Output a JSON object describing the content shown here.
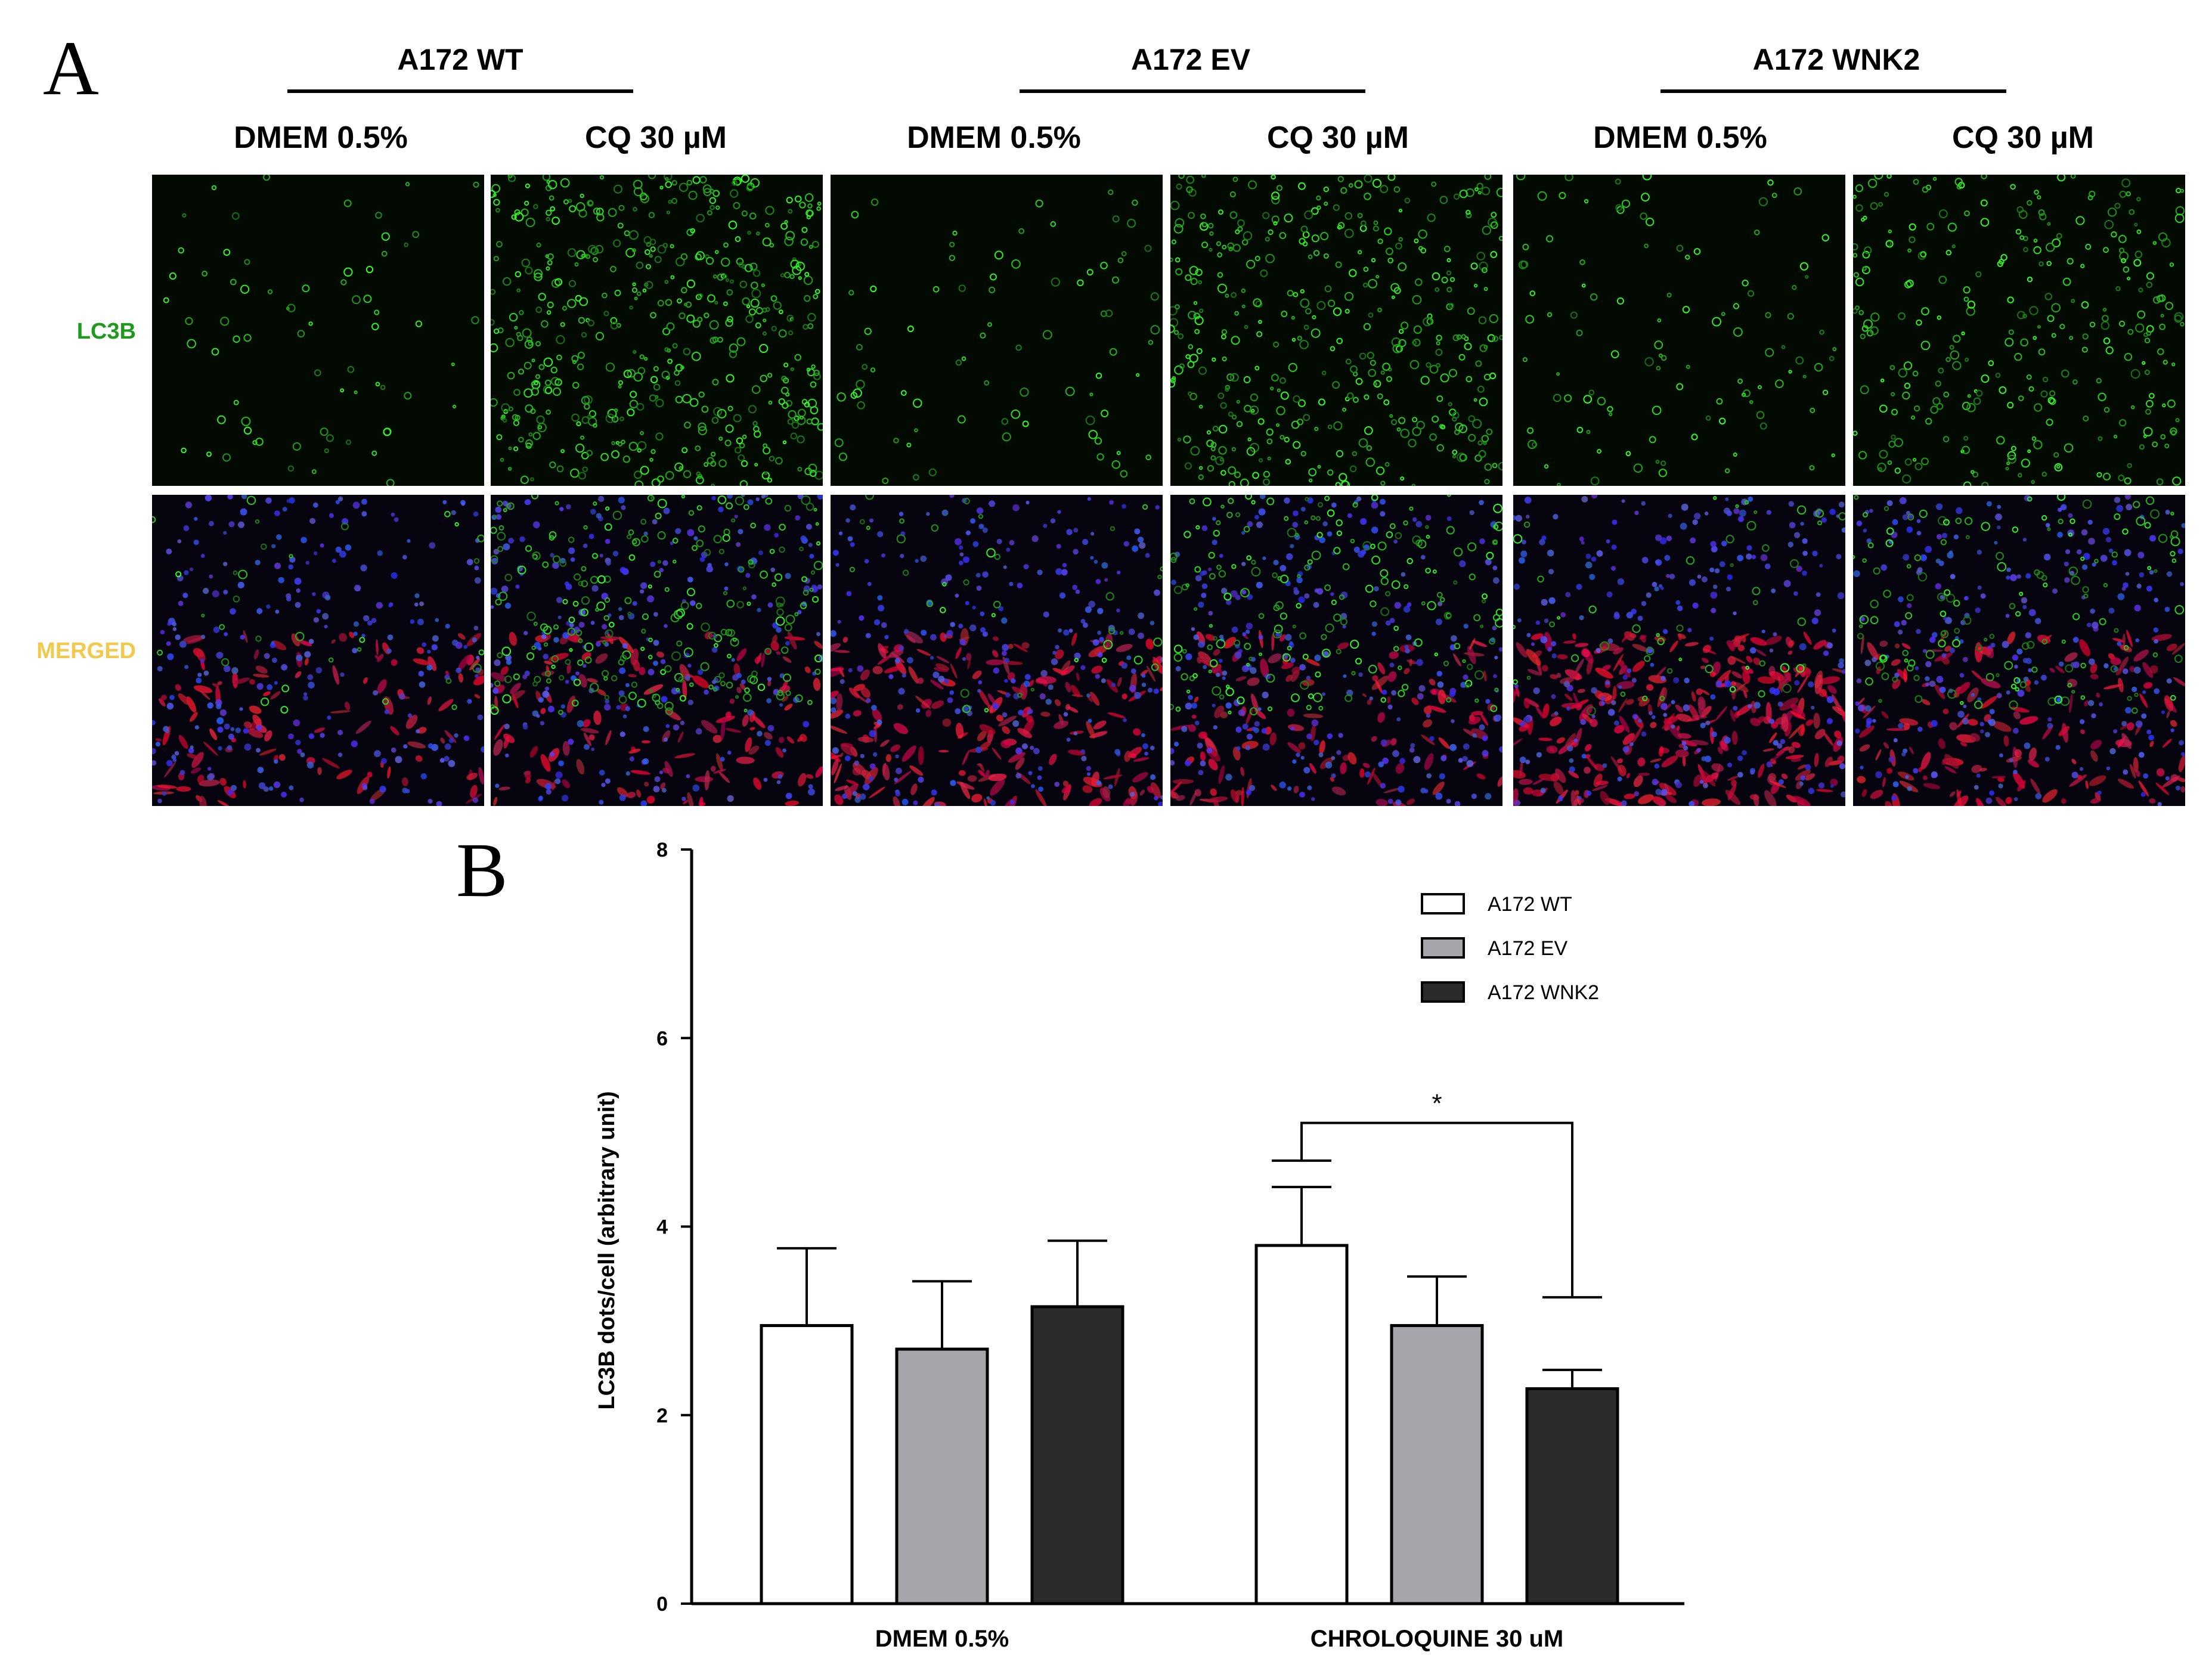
{
  "panel_a": {
    "letter": "A",
    "groups": [
      {
        "title": "A172 WT",
        "conditions": [
          "DMEM 0.5%",
          "CQ 30 µM"
        ]
      },
      {
        "title": "A172 EV",
        "conditions": [
          "DMEM 0.5%",
          "CQ 30 µM"
        ]
      },
      {
        "title": "A172 WNK2",
        "conditions": [
          "DMEM 0.5%",
          "CQ 30 µM"
        ]
      }
    ],
    "rows": [
      {
        "label": "LC3B",
        "color": "#1f9a1f"
      },
      {
        "label": "MERGED",
        "color": "#f2c94c"
      }
    ]
  },
  "panel_b": {
    "letter": "B"
  },
  "chart_data": {
    "type": "bar",
    "categories": [
      "DMEM 0.5%",
      "CHROLOQUINE 30 uM"
    ],
    "series": [
      {
        "name": "A172 WT",
        "color": "#ffffff",
        "values": [
          2.95,
          3.8
        ],
        "errors": [
          0.82,
          0.62
        ]
      },
      {
        "name": "A172 EV",
        "color": "#a6a6aa",
        "values": [
          2.7,
          2.95
        ],
        "errors": [
          0.72,
          0.52
        ]
      },
      {
        "name": "A172 WNK2",
        "color": "#2b2b2b",
        "values": [
          3.15,
          2.28
        ],
        "errors": [
          0.7,
          0.2
        ]
      }
    ],
    "ylabel": "LC3B dots/cell (arbitrary unit)",
    "xlabel": "",
    "ylim": [
      0,
      8
    ],
    "yticks": [
      0,
      2,
      4,
      6,
      8
    ],
    "legend": "top-right",
    "grid": false,
    "annotations": [
      {
        "text": "*",
        "category": "CHROLOQUINE 30 uM",
        "from_series": "A172 WT",
        "to_series": "A172 WNK2",
        "bracket_y": 5.1,
        "left_y": 4.7,
        "right_y": 3.25
      }
    ]
  }
}
